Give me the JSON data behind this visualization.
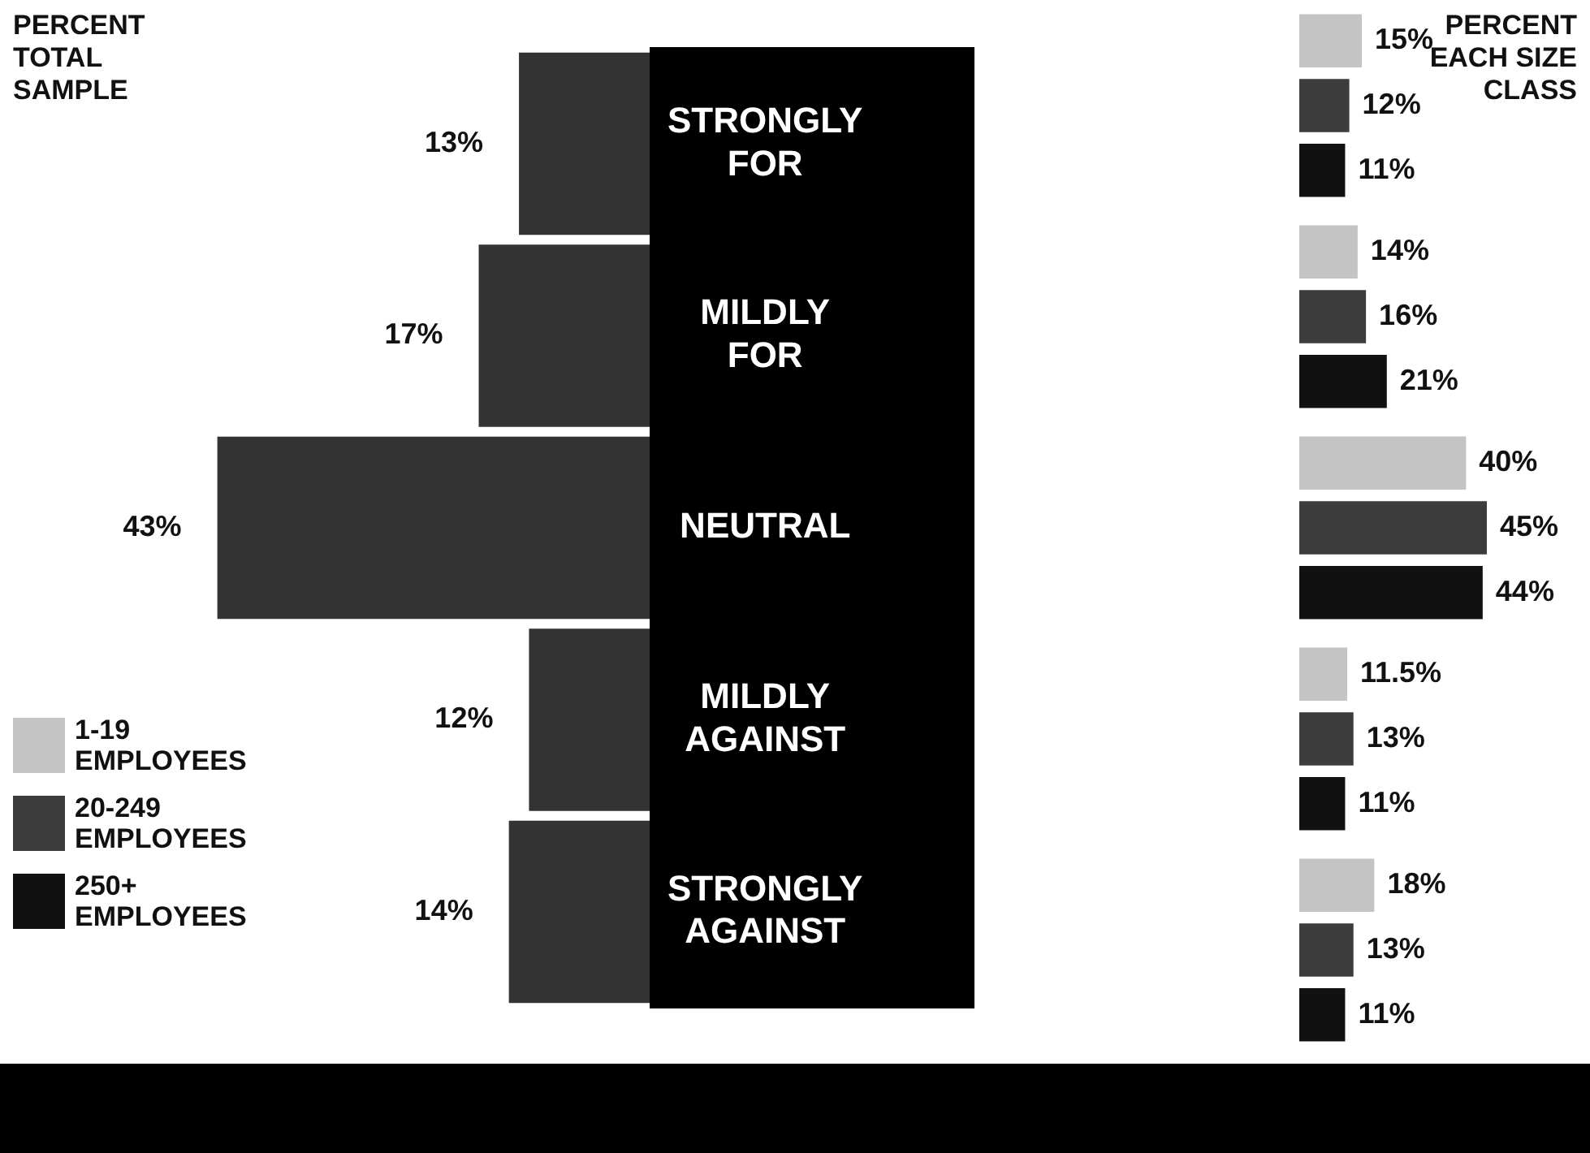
{
  "chart_data": [
    {
      "type": "bar",
      "orientation": "horizontal",
      "title": "PERCENT TOTAL SAMPLE",
      "categories": [
        "STRONGLY FOR",
        "MILDLY FOR",
        "NEUTRAL",
        "MILDLY AGAINST",
        "STRONGLY AGAINST"
      ],
      "values": [
        13,
        17,
        43,
        12,
        14
      ],
      "value_labels": [
        "13%",
        "17%",
        "43%",
        "12%",
        "14%"
      ],
      "color": "#333333",
      "tick_labels": "y"
    },
    {
      "type": "bar",
      "orientation": "horizontal",
      "title": "PERCENT EACH SIZE CLASS",
      "categories": [
        null,
        null,
        null,
        null,
        null
      ],
      "legend": "bottom left",
      "tick_labels": false,
      "series": [
        {
          "name": "1-19 EMPLOYEES",
          "color": "#c4c4c4",
          "values": [
            15,
            14,
            40,
            11.5,
            18
          ],
          "value_labels": [
            "15%",
            "14%",
            "40%",
            "11.5%",
            "18%"
          ]
        },
        {
          "name": "20-249 EMPLOYEES",
          "color": "#3c3c3c",
          "values": [
            12,
            16,
            45,
            13,
            13
          ],
          "value_labels": [
            "12%",
            "16%",
            "45%",
            "13%",
            "13%"
          ]
        },
        {
          "name": "250+ EMPLOYEES",
          "color": "#111111",
          "values": [
            11,
            21,
            44,
            11,
            11
          ],
          "value_labels": [
            "11%",
            "21%",
            "44%",
            "11%",
            "11%"
          ]
        }
      ]
    }
  ]
}
